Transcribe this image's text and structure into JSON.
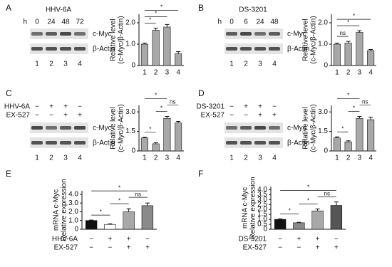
{
  "panels": [
    {
      "letter": "A",
      "blot": {
        "title": "HHV-6A",
        "time_label": "h",
        "times": [
          "0",
          "24",
          "48",
          "72"
        ],
        "bands": [
          "c-Myc",
          "β-Actin"
        ],
        "lanes": [
          "1",
          "2",
          "3",
          "4"
        ]
      }
    },
    {
      "letter": "B",
      "blot": {
        "title": "DS-3201",
        "time_label": "h",
        "times": [
          "0",
          "6",
          "24",
          "48"
        ],
        "bands": [
          "c-Myc",
          "β-Actin"
        ],
        "lanes": [
          "1",
          "2",
          "3",
          "4"
        ]
      }
    },
    {
      "letter": "C",
      "blot": {
        "conditions": [
          {
            "name": "HHV-6A",
            "signs": [
              "−",
              "+",
              "+",
              "−"
            ]
          },
          {
            "name": "EX-527",
            "signs": [
              "−",
              "−",
              "+",
              "+"
            ]
          }
        ],
        "bands": [
          "c-Myc",
          "β-Actin"
        ],
        "lanes": [
          "1",
          "2",
          "3",
          "4"
        ]
      }
    },
    {
      "letter": "D",
      "blot": {
        "conditions": [
          {
            "name": "DS-3201",
            "signs": [
              "−",
              "+",
              "+",
              "−"
            ]
          },
          {
            "name": "EX-527",
            "signs": [
              "−",
              "−",
              "+",
              "+"
            ]
          }
        ],
        "bands": [
          "c-Myc",
          "β-Actin"
        ],
        "lanes": [
          "1",
          "2",
          "3",
          "4"
        ]
      }
    },
    {
      "letter": "E"
    },
    {
      "letter": "F"
    }
  ],
  "chart_data": [
    {
      "type": "bar",
      "ylabel": [
        "Relative level",
        "(c-Myc/β-Actin)"
      ],
      "categories": [
        "1",
        "2",
        "3",
        "4"
      ],
      "values": [
        1.0,
        1.65,
        1.8,
        0.55
      ],
      "errors": [
        0.05,
        0.1,
        0.12,
        0.1
      ],
      "color": "#a8a8a8",
      "ylim": [
        0,
        2.4
      ],
      "yticks": [
        0,
        {
          "value": 1,
          "label": "1.0"
        },
        {
          "value": 2,
          "label": "2.0"
        }
      ],
      "brackets": [
        {
          "between": [
            "1",
            "2"
          ],
          "label": "*"
        },
        {
          "between": [
            "1",
            "3"
          ],
          "label": "*"
        },
        {
          "between": [
            "1",
            "4"
          ],
          "label": "*"
        }
      ]
    },
    {
      "type": "bar",
      "ylabel": [
        "Relative level",
        "(c-Myc/β-Actin)"
      ],
      "categories": [
        "1",
        "2",
        "3",
        "4"
      ],
      "values": [
        1.0,
        1.05,
        1.55,
        0.7
      ],
      "errors": [
        0.05,
        0.08,
        0.08,
        0.05
      ],
      "color": "#a8a8a8",
      "ylim": [
        0,
        2.4
      ],
      "yticks": [
        0,
        {
          "value": 1,
          "label": "1.0"
        },
        {
          "value": 2,
          "label": "2.0"
        }
      ],
      "brackets": [
        {
          "between": [
            "1",
            "2"
          ],
          "label": "ns"
        },
        {
          "between": [
            "1",
            "3"
          ],
          "label": "*"
        },
        {
          "between": [
            "1",
            "4"
          ],
          "label": "*"
        }
      ]
    },
    {
      "type": "bar",
      "ylabel": [
        "Relative level",
        "(c-Myc/β-Actin)"
      ],
      "categories": [
        "1",
        "2",
        "3",
        "4"
      ],
      "values": [
        1.0,
        0.55,
        2.5,
        2.15
      ],
      "errors": [
        0.05,
        0.08,
        0.15,
        0.12
      ],
      "color": "#a8a8a8",
      "ylim": [
        0,
        3.5
      ],
      "yticks": [
        0,
        1.5,
        {
          "value": 3,
          "label": "3.0"
        }
      ],
      "brackets": [
        {
          "between": [
            "1",
            "2"
          ],
          "label": "*"
        },
        {
          "between": [
            "2",
            "3"
          ],
          "label": "*"
        },
        {
          "between": [
            "3",
            "4"
          ],
          "label": "ns"
        },
        {
          "between": [
            "1",
            "3"
          ],
          "label": "*"
        }
      ]
    },
    {
      "type": "bar",
      "ylabel": [
        "Relative level",
        "(c-Myc/β-Actin)"
      ],
      "categories": [
        "1",
        "2",
        "3",
        "4"
      ],
      "values": [
        1.0,
        0.7,
        2.5,
        2.4
      ],
      "errors": [
        0.08,
        0.08,
        0.15,
        0.2
      ],
      "color": "#a8a8a8",
      "ylim": [
        0,
        3.5
      ],
      "yticks": [
        0,
        1.5,
        {
          "value": 3,
          "label": "3.0"
        }
      ],
      "brackets": [
        {
          "between": [
            "1",
            "2"
          ],
          "label": "*"
        },
        {
          "between": [
            "2",
            "3"
          ],
          "label": "*"
        },
        {
          "between": [
            "3",
            "4"
          ],
          "label": "ns"
        },
        {
          "between": [
            "1",
            "3"
          ],
          "label": "*"
        }
      ]
    },
    {
      "type": "bar",
      "ylabel": [
        "mRNA c-Myc",
        "Relative expression"
      ],
      "categories": [
        null,
        null,
        null,
        null
      ],
      "conditions": [
        {
          "name": "HHV-6A",
          "signs": [
            "−",
            "+",
            "+",
            "−"
          ]
        },
        {
          "name": "EX-527",
          "signs": [
            "−",
            "−",
            "+",
            "+"
          ]
        }
      ],
      "values": [
        1.0,
        0.55,
        2.0,
        2.7
      ],
      "errors": [
        0.05,
        0.08,
        0.35,
        0.3
      ],
      "colors": [
        "#111111",
        "#ffffff",
        "#a8a8a8",
        "#8a8a8a"
      ],
      "ylim": [
        0,
        4.4
      ],
      "yticks": [
        0,
        {
          "value": 1,
          "label": "1.0"
        },
        {
          "value": 2,
          "label": "2.0"
        },
        {
          "value": 3,
          "label": "3.0"
        },
        {
          "value": 4,
          "label": "4.0"
        }
      ],
      "brackets": [
        {
          "between": [
            1,
            2
          ],
          "label": "*"
        },
        {
          "between": [
            2,
            3
          ],
          "label": "*"
        },
        {
          "between": [
            3,
            4
          ],
          "label": "ns"
        },
        {
          "between": [
            1,
            4
          ],
          "label": "*"
        }
      ]
    },
    {
      "type": "bar",
      "ylabel": [
        "mRNA c-Myc",
        "Relative expression"
      ],
      "categories": [
        null,
        null,
        null,
        null
      ],
      "conditions": [
        {
          "name": "DS-3201",
          "signs": [
            "−",
            "+",
            "+",
            "−"
          ]
        },
        {
          "name": "EX-527",
          "signs": [
            "−",
            "−",
            "+",
            "+"
          ]
        }
      ],
      "values": [
        1.0,
        0.65,
        1.85,
        2.4
      ],
      "errors": [
        0.05,
        0.05,
        0.2,
        0.35
      ],
      "colors": [
        "#111111",
        "#8a8a8a",
        "#a8a8a8",
        "#555555"
      ],
      "ylim": [
        0,
        4.3
      ],
      "yticks": [
        0,
        0.5,
        {
          "value": 1,
          "label": "1.0"
        },
        1.5,
        {
          "value": 2,
          "label": "2.0"
        },
        2.5,
        {
          "value": 3,
          "label": "3.0"
        },
        3.5,
        {
          "value": 4,
          "label": "4.0"
        }
      ],
      "brackets": [
        {
          "between": [
            1,
            2
          ],
          "label": "*"
        },
        {
          "between": [
            2,
            3
          ],
          "label": "*"
        },
        {
          "between": [
            3,
            4
          ],
          "label": "ns"
        },
        {
          "between": [
            1,
            4
          ],
          "label": "*"
        }
      ]
    }
  ]
}
